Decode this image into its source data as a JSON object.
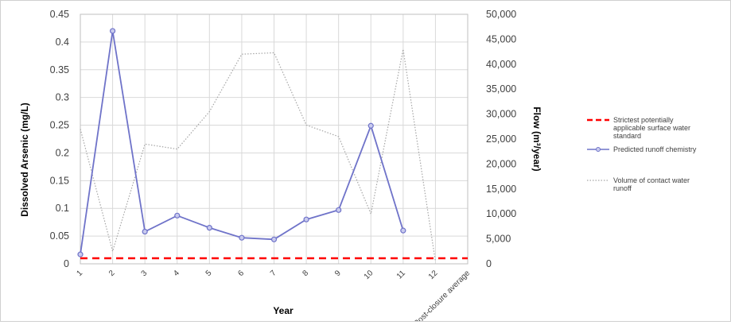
{
  "chart_data": {
    "type": "line",
    "categories": [
      "1",
      "2",
      "3",
      "4",
      "5",
      "6",
      "7",
      "8",
      "9",
      "10",
      "11",
      "12",
      "Post-closure average"
    ],
    "xlabel": "Year",
    "ylabel": "Dissolved Arsenic (mg/L)",
    "y2label": "Flow (m³/year)",
    "ylim": [
      0,
      0.45
    ],
    "y2lim": [
      0,
      50000
    ],
    "yticks": [
      "0",
      "0.05",
      "0.1",
      "0.15",
      "0.2",
      "0.25",
      "0.3",
      "0.35",
      "0.4",
      "0.45"
    ],
    "y2ticks": [
      "0",
      "5,000",
      "10,000",
      "15,000",
      "20,000",
      "25,000",
      "30,000",
      "35,000",
      "40,000",
      "45,000",
      "50,000"
    ],
    "grid": true,
    "legend_position": "right",
    "series": [
      {
        "name": "Strictest potentially applicable surface water standard",
        "axis": "left",
        "style": "dashed",
        "color": "#ff0000",
        "values": [
          0.01,
          0.01,
          0.01,
          0.01,
          0.01,
          0.01,
          0.01,
          0.01,
          0.01,
          0.01,
          0.01,
          0.01,
          0.01
        ]
      },
      {
        "name": "Predicted runoff chemistry",
        "axis": "left",
        "style": "solid-markers",
        "color": "#6f73c9",
        "values": [
          0.017,
          0.42,
          0.058,
          0.087,
          0.065,
          0.047,
          0.044,
          0.08,
          0.097,
          0.249,
          0.06,
          null,
          null
        ]
      },
      {
        "name": "Volume of contact water runoff",
        "axis": "right",
        "style": "dotted",
        "color": "#a6a6a6",
        "values": [
          27000,
          2500,
          24000,
          23000,
          30500,
          42000,
          42300,
          27800,
          25500,
          10000,
          43000,
          500,
          null
        ]
      }
    ]
  }
}
